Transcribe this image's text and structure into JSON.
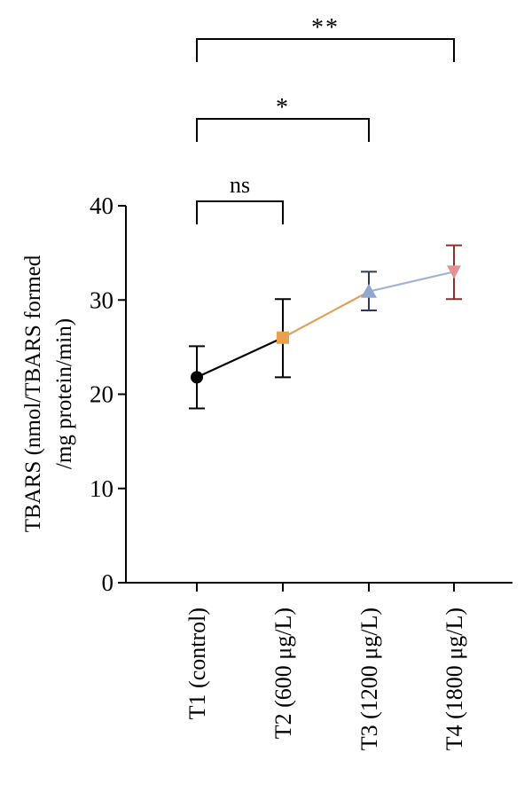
{
  "chart_data": {
    "type": "line",
    "categories": [
      "T1 (control)",
      "T2 (600 μg/L)",
      "T3 (1200 μg/L)",
      "T4 (1800 μg/L)"
    ],
    "values": [
      21.8,
      26.0,
      30.9,
      33.0
    ],
    "error_low": [
      18.5,
      21.8,
      28.9,
      30.1
    ],
    "error_high": [
      25.1,
      30.1,
      33.0,
      35.8
    ],
    "markers": [
      "circle",
      "square",
      "triangle-up",
      "triangle-down"
    ],
    "point_colors": [
      "#000000",
      "#e8a24f",
      "#8ea8cf",
      "#e59097"
    ],
    "errorbar_colors": [
      "#000000",
      "#000000",
      "#2f3a5a",
      "#8c2f2f"
    ],
    "segment_colors": [
      "#000000",
      "#e0a05a",
      "#9db4d3"
    ],
    "ylabel": "TBARS (nmol/TBARS formed /mg protein/min)",
    "ylabel_lines": [
      "TBARS (nmol/TBARS formed",
      "/mg protein/min)"
    ],
    "ylim": [
      0,
      40
    ],
    "yticks": [
      0,
      10,
      20,
      30,
      40
    ],
    "grid": false,
    "significance": [
      {
        "from": 0,
        "to": 1,
        "label": "ns"
      },
      {
        "from": 0,
        "to": 2,
        "label": "*"
      },
      {
        "from": 0,
        "to": 3,
        "label": "**"
      }
    ]
  }
}
